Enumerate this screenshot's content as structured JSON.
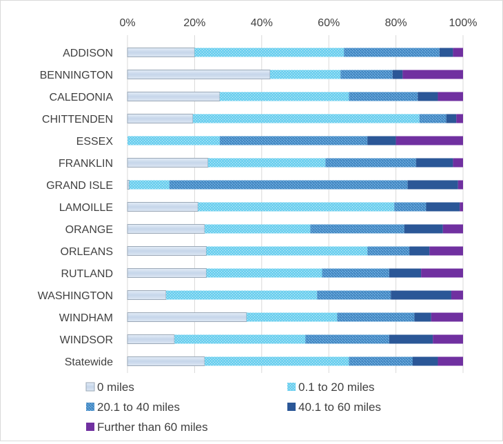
{
  "chart_data": {
    "type": "bar",
    "orientation": "horizontal",
    "stacked": "percent",
    "title": "",
    "xlabel": "",
    "ylabel": "",
    "xlim": [
      0,
      100
    ],
    "x_ticks": [
      "0%",
      "20%",
      "40%",
      "60%",
      "80%",
      "100%"
    ],
    "grid": true,
    "legend_position": "bottom",
    "categories": [
      "ADDISON",
      "BENNINGTON",
      "CALEDONIA",
      "CHITTENDEN",
      "ESSEX",
      "FRANKLIN",
      "GRAND ISLE",
      "LAMOILLE",
      "ORANGE",
      "ORLEANS",
      "RUTLAND",
      "WASHINGTON",
      "WINDHAM",
      "WINDSOR",
      "Statewide"
    ],
    "series": [
      {
        "name": "0 miles",
        "color": "#c9d9ec",
        "values": [
          20,
          42.5,
          27.5,
          19.5,
          0,
          24,
          0.5,
          21,
          23,
          23.5,
          23.5,
          11.5,
          35.5,
          14,
          23
        ]
      },
      {
        "name": "0.1 to 20 miles",
        "color": "#6fd0ef",
        "values": [
          44.5,
          21,
          38.5,
          67.5,
          27.5,
          35,
          12,
          58.5,
          31.5,
          48,
          34.5,
          45,
          27,
          39,
          43
        ]
      },
      {
        "name": "20.1 to 40 miles",
        "color": "#4a8fc9",
        "values": [
          28.5,
          15.5,
          20.5,
          8,
          44,
          27,
          71,
          9.5,
          28,
          12.5,
          20,
          22,
          23,
          25,
          19
        ]
      },
      {
        "name": "40.1 to 60 miles",
        "color": "#2b5797",
        "values": [
          4,
          3,
          6,
          3,
          8.5,
          11,
          15,
          10,
          11.5,
          6,
          9.5,
          18,
          5,
          13,
          7.5
        ]
      },
      {
        "name": "Further than 60 miles",
        "color": "#7030a0",
        "values": [
          3,
          18,
          7.5,
          2,
          20,
          3,
          1.5,
          1,
          6,
          10,
          12.5,
          3.5,
          9.5,
          9,
          7.5
        ]
      }
    ]
  }
}
